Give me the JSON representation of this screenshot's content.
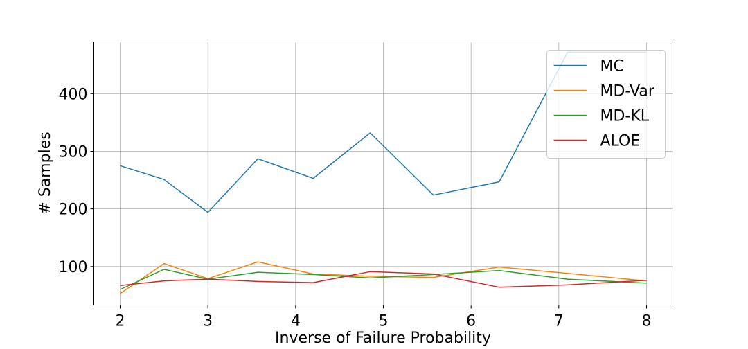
{
  "chart_data": {
    "type": "line",
    "title": "",
    "xlabel": "Inverse of Failure Probability",
    "ylabel": "# Samples",
    "xlim": [
      1.7,
      8.3
    ],
    "ylim": [
      33,
      490
    ],
    "xticks": [
      2,
      3,
      4,
      5,
      6,
      7,
      8
    ],
    "yticks": [
      100,
      200,
      300,
      400
    ],
    "grid": true,
    "legend_position": "top-right",
    "x": [
      2.0,
      2.5,
      3.0,
      3.57,
      4.2,
      4.85,
      5.57,
      6.32,
      7.1,
      8.0
    ],
    "series": [
      {
        "name": "MC",
        "color": "#1f77b4",
        "values": [
          275,
          251,
          194,
          287,
          253,
          332,
          224,
          247,
          472,
          472
        ]
      },
      {
        "name": "MD-Var",
        "color": "#ff7f0e",
        "values": [
          53,
          105,
          79,
          108,
          87,
          83,
          81,
          99,
          88,
          75
        ]
      },
      {
        "name": "MD-KL",
        "color": "#2ca02c",
        "values": [
          60,
          95,
          78,
          90,
          86,
          80,
          86,
          93,
          78,
          71
        ]
      },
      {
        "name": "ALOE",
        "color": "#d62728",
        "values": [
          67,
          75,
          78,
          74,
          72,
          91,
          87,
          64,
          68,
          76
        ]
      }
    ]
  }
}
